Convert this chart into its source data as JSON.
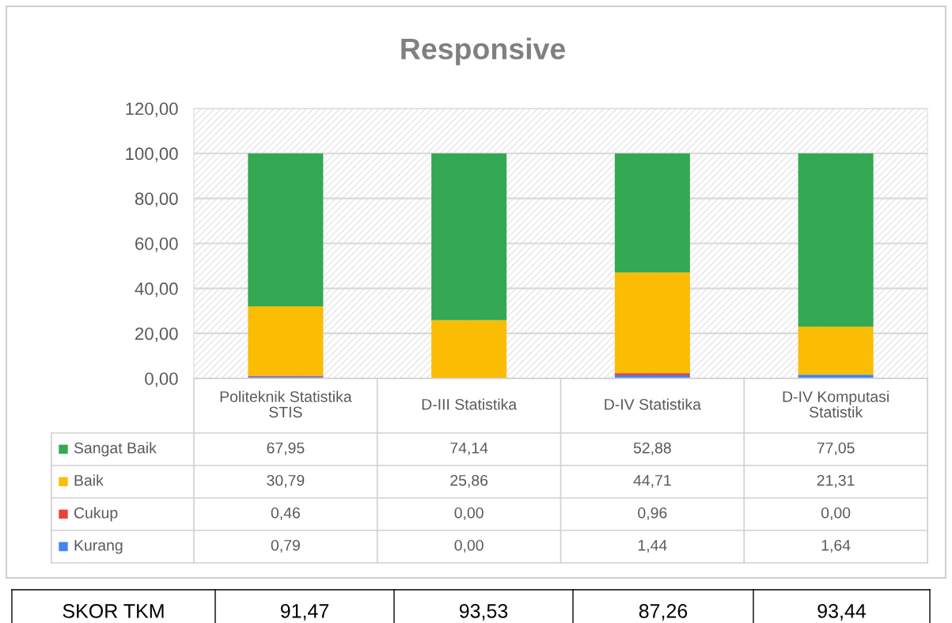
{
  "chart_data": {
    "type": "bar",
    "title": "Responsive",
    "stacked": true,
    "categories": [
      "Politeknik Statistika STIS",
      "D-III Statistika",
      "D-IV Statistika",
      "D-IV Komputasi Statistik"
    ],
    "series": [
      {
        "name": "Kurang",
        "color": "#4285f4",
        "values": [
          0.79,
          0.0,
          1.44,
          1.64
        ],
        "value_labels": [
          "0,79",
          "0,00",
          "1,44",
          "1,64"
        ]
      },
      {
        "name": "Cukup",
        "color": "#ea4335",
        "values": [
          0.46,
          0.0,
          0.96,
          0.0
        ],
        "value_labels": [
          "0,46",
          "0,00",
          "0,96",
          "0,00"
        ]
      },
      {
        "name": "Baik",
        "color": "#fbbc04",
        "values": [
          30.79,
          25.86,
          44.71,
          21.31
        ],
        "value_labels": [
          "30,79",
          "25,86",
          "44,71",
          "21,31"
        ]
      },
      {
        "name": "Sangat Baik",
        "color": "#34a853",
        "values": [
          67.95,
          74.14,
          52.88,
          77.05
        ],
        "value_labels": [
          "67,95",
          "74,14",
          "52,88",
          "77,05"
        ]
      }
    ],
    "ylim": [
      0,
      120
    ],
    "yticks": [
      {
        "value": 0,
        "label": "0,00"
      },
      {
        "value": 20,
        "label": "20,00"
      },
      {
        "value": 40,
        "label": "40,00"
      },
      {
        "value": 60,
        "label": "60,00"
      },
      {
        "value": 80,
        "label": "80,00"
      },
      {
        "value": 100,
        "label": "100,00"
      },
      {
        "value": 120,
        "label": "120,00"
      }
    ],
    "grid": true,
    "legend": "bottom",
    "annotations": [
      "SKOR TKM",
      "91,47",
      "93,53",
      "87,26",
      "93,44"
    ]
  }
}
